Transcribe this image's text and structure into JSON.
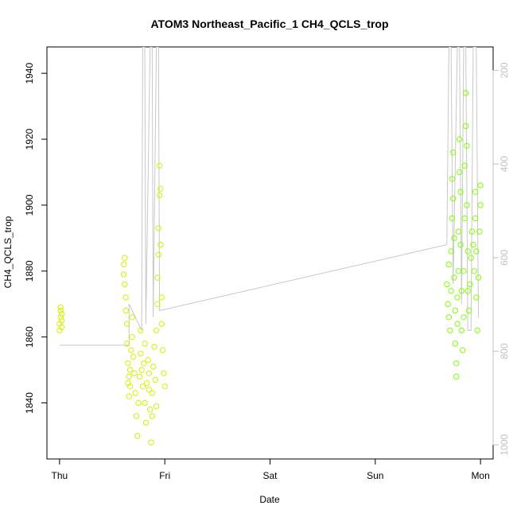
{
  "chart_data": {
    "type": "scatter",
    "title": "ATOM3 Northeast_Pacific_1 CH4_QCLS_trop",
    "xlabel": "Date",
    "ylabel": "CH4_QCLS_trop",
    "x_ticks": [
      "Thu",
      "Fri",
      "Sat",
      "Sun",
      "Mon"
    ],
    "y_ticks": [
      1840,
      1860,
      1880,
      1900,
      1920,
      1940
    ],
    "y_range": [
      1823,
      1948
    ],
    "y2_ticks": [
      200,
      400,
      600,
      800,
      1000
    ],
    "y2_range": [
      150,
      1030
    ],
    "y2_reversed": true,
    "grid": false,
    "series": [
      {
        "color": "#d4f000",
        "points": [
          [
            0.0,
            1862
          ],
          [
            0.0,
            1864
          ],
          [
            0.01,
            1866
          ],
          [
            0.01,
            1868
          ],
          [
            0.01,
            1869
          ],
          [
            0.02,
            1865
          ],
          [
            0.02,
            1863
          ],
          [
            0.02,
            1867
          ],
          [
            0.61,
            1882
          ],
          [
            0.61,
            1879
          ],
          [
            0.62,
            1876
          ],
          [
            0.62,
            1884
          ],
          [
            0.63,
            1872
          ],
          [
            0.63,
            1868
          ],
          [
            0.64,
            1864
          ],
          [
            0.64,
            1858
          ],
          [
            0.65,
            1852
          ],
          [
            0.65,
            1846
          ],
          [
            0.66,
            1842
          ],
          [
            0.66,
            1848
          ],
          [
            0.67,
            1845
          ],
          [
            0.67,
            1850
          ],
          [
            0.68,
            1856
          ],
          [
            0.69,
            1866
          ],
          [
            0.69,
            1860
          ],
          [
            0.7,
            1854
          ],
          [
            0.71,
            1849
          ],
          [
            0.72,
            1843
          ],
          [
            0.73,
            1836
          ],
          [
            0.74,
            1830
          ],
          [
            0.75,
            1840
          ],
          [
            0.76,
            1848
          ],
          [
            0.77,
            1855
          ],
          [
            0.77,
            1862
          ],
          [
            0.78,
            1850
          ],
          [
            0.79,
            1845
          ],
          [
            0.8,
            1852
          ],
          [
            0.81,
            1858
          ],
          [
            0.81,
            1840
          ],
          [
            0.82,
            1834
          ],
          [
            0.83,
            1846
          ],
          [
            0.84,
            1853
          ],
          [
            0.85,
            1849
          ],
          [
            0.85,
            1844
          ],
          [
            0.86,
            1838
          ],
          [
            0.87,
            1828
          ],
          [
            0.88,
            1836
          ],
          [
            0.88,
            1843
          ],
          [
            0.89,
            1851
          ],
          [
            0.9,
            1857
          ],
          [
            0.91,
            1847
          ],
          [
            0.92,
            1839
          ],
          [
            0.92,
            1862
          ],
          [
            0.93,
            1870
          ],
          [
            0.93,
            1878
          ],
          [
            0.94,
            1885
          ],
          [
            0.94,
            1893
          ],
          [
            0.95,
            1903
          ],
          [
            0.95,
            1912
          ],
          [
            0.96,
            1905
          ],
          [
            0.96,
            1888
          ],
          [
            0.97,
            1872
          ],
          [
            0.97,
            1864
          ],
          [
            0.98,
            1856
          ],
          [
            0.99,
            1849
          ],
          [
            1.0,
            1845
          ]
        ]
      },
      {
        "color": "#7fff00",
        "points": [
          [
            3.68,
            1876
          ],
          [
            3.69,
            1870
          ],
          [
            3.7,
            1882
          ],
          [
            3.7,
            1866
          ],
          [
            3.71,
            1862
          ],
          [
            3.72,
            1874
          ],
          [
            3.72,
            1886
          ],
          [
            3.73,
            1896
          ],
          [
            3.73,
            1908
          ],
          [
            3.74,
            1916
          ],
          [
            3.74,
            1902
          ],
          [
            3.75,
            1890
          ],
          [
            3.75,
            1878
          ],
          [
            3.76,
            1868
          ],
          [
            3.76,
            1858
          ],
          [
            3.77,
            1852
          ],
          [
            3.77,
            1848
          ],
          [
            3.78,
            1864
          ],
          [
            3.78,
            1872
          ],
          [
            3.79,
            1880
          ],
          [
            3.79,
            1892
          ],
          [
            3.8,
            1910
          ],
          [
            3.8,
            1920
          ],
          [
            3.81,
            1904
          ],
          [
            3.81,
            1888
          ],
          [
            3.82,
            1874
          ],
          [
            3.82,
            1862
          ],
          [
            3.83,
            1856
          ],
          [
            3.84,
            1866
          ],
          [
            3.84,
            1880
          ],
          [
            3.85,
            1896
          ],
          [
            3.85,
            1912
          ],
          [
            3.86,
            1924
          ],
          [
            3.86,
            1934
          ],
          [
            3.87,
            1918
          ],
          [
            3.87,
            1900
          ],
          [
            3.88,
            1886
          ],
          [
            3.88,
            1874
          ],
          [
            3.89,
            1868
          ],
          [
            3.9,
            1876
          ],
          [
            3.91,
            1884
          ],
          [
            3.92,
            1892
          ],
          [
            3.93,
            1888
          ],
          [
            3.94,
            1880
          ],
          [
            3.95,
            1896
          ],
          [
            3.95,
            1904
          ],
          [
            3.96,
            1886
          ],
          [
            3.96,
            1872
          ],
          [
            3.97,
            1862
          ],
          [
            3.98,
            1878
          ],
          [
            3.99,
            1892
          ],
          [
            4.0,
            1900
          ],
          [
            4.0,
            1906
          ]
        ]
      }
    ],
    "profile_lines": {
      "color": "#c8c8c8",
      "path": [
        [
          0.0,
          1857.5
        ],
        [
          0.66,
          1857.5
        ],
        [
          0.66,
          1870
        ],
        [
          0.78,
          1862
        ],
        [
          0.79,
          1948
        ],
        [
          0.81,
          1948
        ],
        [
          0.82,
          1864
        ],
        [
          0.86,
          1948
        ],
        [
          0.88,
          1948
        ],
        [
          0.89,
          1866
        ],
        [
          0.92,
          1948
        ],
        [
          0.94,
          1948
        ],
        [
          0.95,
          1868
        ],
        [
          3.68,
          1888
        ],
        [
          3.7,
          1948
        ],
        [
          3.72,
          1948
        ],
        [
          3.74,
          1876
        ],
        [
          3.78,
          1948
        ],
        [
          3.8,
          1948
        ],
        [
          3.82,
          1870
        ],
        [
          3.84,
          1948
        ],
        [
          3.86,
          1948
        ],
        [
          3.88,
          1862
        ],
        [
          3.91,
          1862
        ],
        [
          3.93,
          1948
        ],
        [
          3.96,
          1948
        ],
        [
          3.98,
          1866
        ]
      ]
    }
  }
}
